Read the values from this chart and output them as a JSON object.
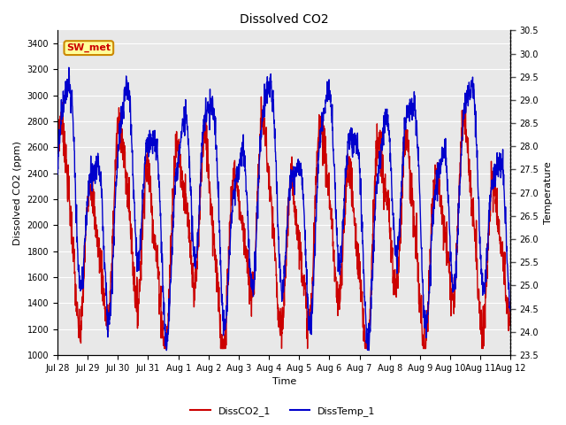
{
  "title": "Dissolved CO2",
  "xlabel": "Time",
  "ylabel_left": "Dissolved CO2 (ppm)",
  "ylabel_right": "Temperature",
  "ylim_left": [
    1000,
    3500
  ],
  "ylim_right": [
    23.5,
    30.5
  ],
  "yticks_left": [
    1000,
    1200,
    1400,
    1600,
    1800,
    2000,
    2200,
    2400,
    2600,
    2800,
    3000,
    3200,
    3400
  ],
  "yticks_right": [
    23.5,
    24.0,
    24.5,
    25.0,
    25.5,
    26.0,
    26.5,
    27.0,
    27.5,
    28.0,
    28.5,
    29.0,
    29.5,
    30.0,
    30.5
  ],
  "xtick_labels": [
    "Jul 28",
    "Jul 29",
    "Jul 30",
    "Jul 31",
    "Aug 1",
    "Aug 2",
    "Aug 3",
    "Aug 4",
    "Aug 5",
    "Aug 6",
    "Aug 7",
    "Aug 8",
    "Aug 9",
    "Aug 10",
    "Aug 11",
    "Aug 12"
  ],
  "color_co2": "#cc0000",
  "color_temp": "#0000cc",
  "legend_label_co2": "DissCO2_1",
  "legend_label_temp": "DissTemp_1",
  "annotation_text": "SW_met",
  "annotation_bg": "#ffff99",
  "annotation_border": "#cc8800",
  "plot_bg": "#e8e8e8",
  "grid_color": "#ffffff"
}
